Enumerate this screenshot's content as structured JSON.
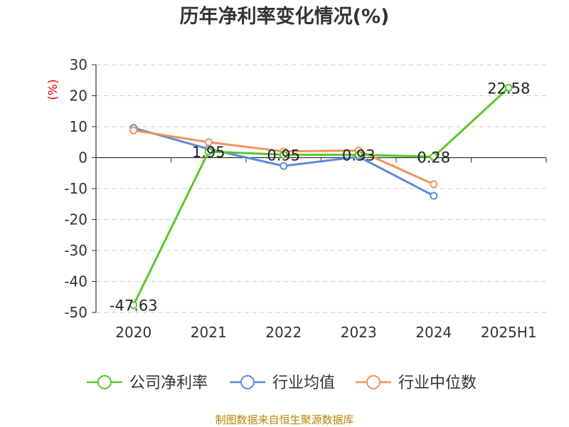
{
  "chart_data": {
    "type": "line",
    "title": "历年净利率变化情况(%)",
    "ylabel": "(%)",
    "categories": [
      "2020",
      "2021",
      "2022",
      "2023",
      "2024",
      "2025H1"
    ],
    "ylim": [
      -50,
      30
    ],
    "yticks": [
      30,
      20,
      10,
      0,
      -10,
      -20,
      -30,
      -40,
      -50
    ],
    "grid": true,
    "legend_position": "bottom",
    "series": [
      {
        "name": "公司净利率",
        "color": "#5bc72c",
        "values": [
          -47.63,
          1.95,
          0.95,
          0.93,
          0.28,
          22.58
        ],
        "labels": [
          "-47.63",
          "1.95",
          "0.95",
          "0.93",
          "0.28",
          "22.58"
        ]
      },
      {
        "name": "行业均值",
        "color": "#5b8ae0",
        "values": [
          9.6,
          2.8,
          -2.7,
          0.3,
          -12.3,
          null
        ]
      },
      {
        "name": "行业中位数",
        "color": "#f5915a",
        "values": [
          8.8,
          5.0,
          2.0,
          2.3,
          -8.6,
          null
        ]
      }
    ]
  },
  "footer": {
    "source": "制图数据来自恒生聚源数据库"
  }
}
